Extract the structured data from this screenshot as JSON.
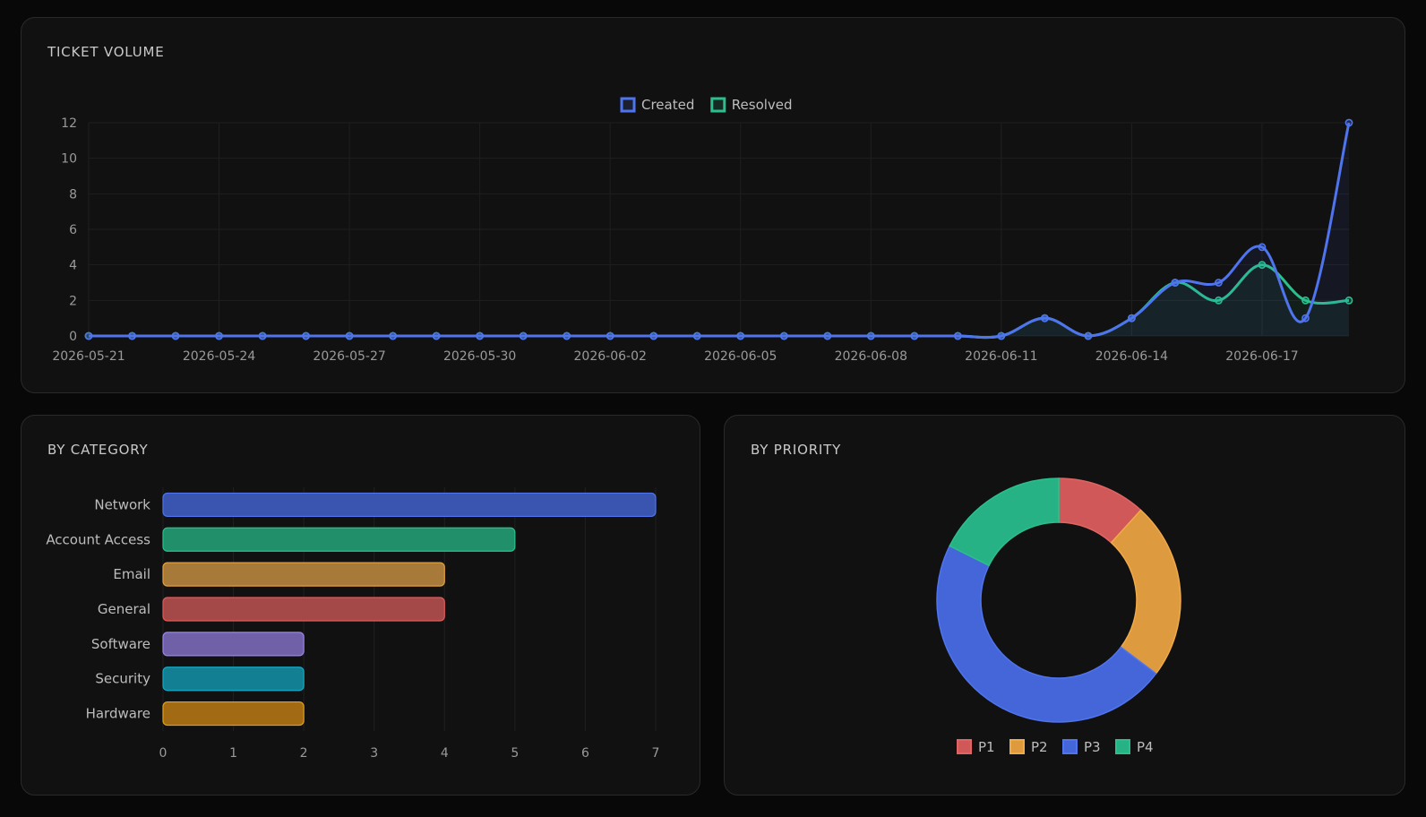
{
  "volume": {
    "title": "TICKET VOLUME",
    "chart_data": {
      "type": "line",
      "x": [
        "2026-05-21",
        "2026-05-22",
        "2026-05-23",
        "2026-05-24",
        "2026-05-25",
        "2026-05-26",
        "2026-05-27",
        "2026-05-28",
        "2026-05-29",
        "2026-05-30",
        "2026-05-31",
        "2026-06-01",
        "2026-06-02",
        "2026-06-03",
        "2026-06-04",
        "2026-06-05",
        "2026-06-06",
        "2026-06-07",
        "2026-06-08",
        "2026-06-09",
        "2026-06-10",
        "2026-06-11",
        "2026-06-12",
        "2026-06-13",
        "2026-06-14",
        "2026-06-15",
        "2026-06-16",
        "2026-06-17",
        "2026-06-18",
        "2026-06-19"
      ],
      "x_tick_labels": [
        "2026-05-21",
        "2026-05-24",
        "2026-05-27",
        "2026-05-30",
        "2026-06-02",
        "2026-06-05",
        "2026-06-08",
        "2026-06-11",
        "2026-06-14",
        "2026-06-17"
      ],
      "series": [
        {
          "name": "Created",
          "color": "#4f74ee",
          "values": [
            0,
            0,
            0,
            0,
            0,
            0,
            0,
            0,
            0,
            0,
            0,
            0,
            0,
            0,
            0,
            0,
            0,
            0,
            0,
            0,
            0,
            0,
            1,
            0,
            1,
            3,
            3,
            5,
            1,
            12
          ]
        },
        {
          "name": "Resolved",
          "color": "#2bbf8e",
          "values": [
            0,
            0,
            0,
            0,
            0,
            0,
            0,
            0,
            0,
            0,
            0,
            0,
            0,
            0,
            0,
            0,
            0,
            0,
            0,
            0,
            0,
            0,
            1,
            0,
            1,
            3,
            2,
            4,
            2,
            2
          ]
        }
      ],
      "y_ticks": [
        0,
        2,
        4,
        6,
        8,
        10,
        12
      ],
      "ylim": [
        0,
        12
      ],
      "grid": true,
      "legend": "top-center"
    }
  },
  "category": {
    "title": "BY CATEGORY",
    "chart_data": {
      "type": "bar",
      "orientation": "horizontal",
      "categories": [
        "Network",
        "Account Access",
        "Email",
        "General",
        "Software",
        "Security",
        "Hardware"
      ],
      "values": [
        7,
        5,
        4,
        4,
        2,
        2,
        2
      ],
      "colors": [
        "#3a55b0",
        "#21906a",
        "#a87a3a",
        "#a54848",
        "#7060a8",
        "#127f93",
        "#a26a12"
      ],
      "border_colors": [
        "#4f74ee",
        "#2bbf8e",
        "#e0a040",
        "#e05a5a",
        "#9b84e6",
        "#15a8c4",
        "#e0a020"
      ],
      "x_ticks": [
        0,
        1,
        2,
        3,
        4,
        5,
        6,
        7
      ],
      "xlim": [
        0,
        7
      ],
      "grid": true
    }
  },
  "priority": {
    "title": "BY PRIORITY",
    "chart_data": {
      "type": "pie",
      "variant": "doughnut",
      "labels": [
        "P1",
        "P2",
        "P3",
        "P4"
      ],
      "values": [
        2,
        4,
        8,
        3
      ],
      "colors": [
        "#d05858",
        "#dd9a3e",
        "#4466d8",
        "#27b285"
      ],
      "border_colors": [
        "#e06464",
        "#f0aa48",
        "#4f74ee",
        "#2bbf8e"
      ],
      "legend": "bottom"
    }
  }
}
